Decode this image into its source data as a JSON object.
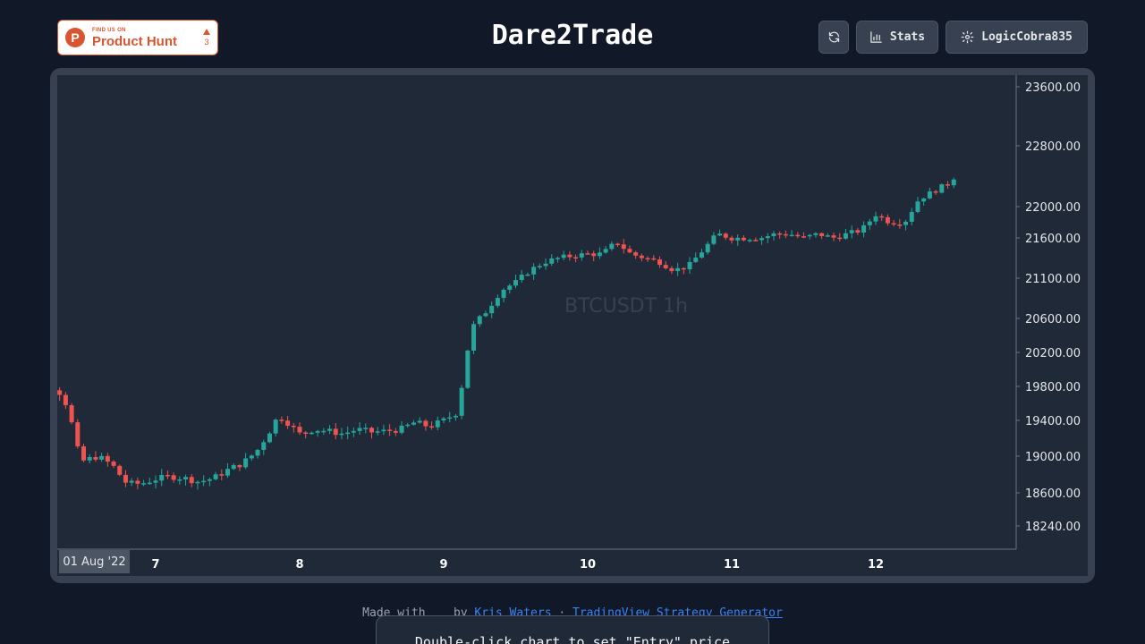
{
  "header": {
    "product_hunt": {
      "small": "FIND US ON",
      "big": "Product Hunt",
      "votes": "3",
      "logo_letter": "P"
    },
    "title": "Dare2Trade",
    "stats_label": "Stats",
    "user_label": "LogicCobra835"
  },
  "chart": {
    "watermark": "BTCUSDT 1h",
    "date_chip": "01 Aug '22",
    "y_ticks": [
      "23600.00",
      "22800.00",
      "22000.00",
      "21600.00",
      "21100.00",
      "20600.00",
      "20200.00",
      "19800.00",
      "19400.00",
      "19000.00",
      "18600.00",
      "18240.00"
    ],
    "x_ticks": [
      "7",
      "8",
      "9",
      "10",
      "11",
      "12"
    ]
  },
  "chart_data": {
    "type": "candlestick",
    "title": "BTCUSDT 1h",
    "xlabel": "",
    "ylabel": "",
    "ylim": [
      18100,
      23700
    ],
    "x_ticks": [
      "7",
      "8",
      "9",
      "10",
      "11",
      "12"
    ],
    "y_ticks": [
      23600,
      22800,
      22000,
      21600,
      21100,
      20600,
      20200,
      19800,
      19400,
      19000,
      18600,
      18240
    ],
    "colors": {
      "up": "#26a69a",
      "down": "#ef5350"
    },
    "close_path": [
      [
        6.0,
        19950
      ],
      [
        6.1,
        19900
      ],
      [
        6.2,
        19850
      ],
      [
        6.3,
        19780
      ],
      [
        6.35,
        19700
      ],
      [
        6.4,
        19500
      ],
      [
        6.45,
        19100
      ],
      [
        6.5,
        18950
      ],
      [
        6.6,
        19000
      ],
      [
        6.7,
        18900
      ],
      [
        6.8,
        18700
      ],
      [
        6.9,
        18700
      ],
      [
        7.0,
        18750
      ],
      [
        7.1,
        18780
      ],
      [
        7.2,
        18760
      ],
      [
        7.3,
        18720
      ],
      [
        7.4,
        18760
      ],
      [
        7.5,
        18850
      ],
      [
        7.6,
        18920
      ],
      [
        7.7,
        19050
      ],
      [
        7.8,
        19300
      ],
      [
        7.85,
        19450
      ],
      [
        7.9,
        19400
      ],
      [
        8.0,
        19250
      ],
      [
        8.1,
        19300
      ],
      [
        8.2,
        19280
      ],
      [
        8.3,
        19250
      ],
      [
        8.4,
        19300
      ],
      [
        8.5,
        19270
      ],
      [
        8.6,
        19280
      ],
      [
        8.7,
        19300
      ],
      [
        8.8,
        19380
      ],
      [
        8.9,
        19330
      ],
      [
        9.0,
        19400
      ],
      [
        9.1,
        19500
      ],
      [
        9.15,
        20100
      ],
      [
        9.2,
        20500
      ],
      [
        9.3,
        20700
      ],
      [
        9.4,
        20950
      ],
      [
        9.5,
        21050
      ],
      [
        9.6,
        21200
      ],
      [
        9.7,
        21300
      ],
      [
        9.8,
        21350
      ],
      [
        9.9,
        21380
      ],
      [
        10.0,
        21400
      ],
      [
        10.1,
        21400
      ],
      [
        10.2,
        21550
      ],
      [
        10.3,
        21400
      ],
      [
        10.4,
        21350
      ],
      [
        10.5,
        21300
      ],
      [
        10.6,
        21200
      ],
      [
        10.7,
        21250
      ],
      [
        10.8,
        21450
      ],
      [
        10.9,
        21650
      ],
      [
        11.0,
        21600
      ],
      [
        11.1,
        21600
      ],
      [
        11.2,
        21600
      ],
      [
        11.3,
        21650
      ],
      [
        11.4,
        21650
      ],
      [
        11.5,
        21600
      ],
      [
        11.6,
        21650
      ],
      [
        11.7,
        21600
      ],
      [
        11.8,
        21650
      ],
      [
        11.9,
        21700
      ],
      [
        12.0,
        21900
      ],
      [
        12.1,
        21800
      ],
      [
        12.2,
        21800
      ],
      [
        12.3,
        22100
      ],
      [
        12.4,
        22200
      ],
      [
        12.5,
        22300
      ],
      [
        12.55,
        22400
      ]
    ]
  },
  "footer": {
    "made_with": "Made with",
    "by": "by",
    "author": "Kris Waters",
    "separator": "·",
    "link": "TradingView Strategy Generator"
  },
  "toast": {
    "message": "Double-click chart to set \"Entry\" price"
  }
}
